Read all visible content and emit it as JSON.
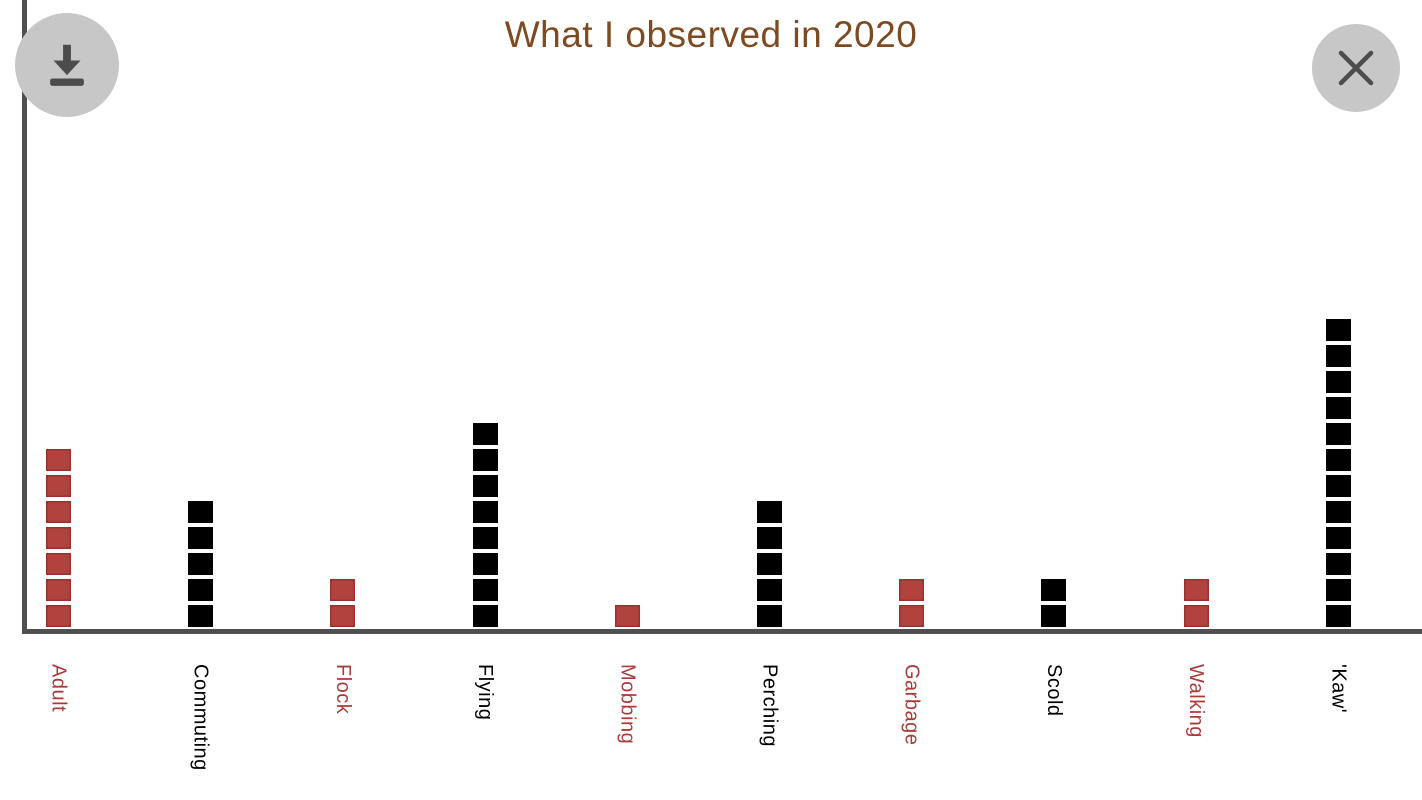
{
  "window": {
    "title": "What I observed in 2020"
  },
  "toolbar": {
    "download_icon": "download-icon",
    "close_icon": "close-icon"
  },
  "chart_data": {
    "type": "bar",
    "subtype": "stacked-unit-squares",
    "title": "What I observed in 2020",
    "categories": [
      "Adult",
      "Commuting",
      "Flock",
      "Flying",
      "Mobbing",
      "Perching",
      "Garbage",
      "Scold",
      "Walking",
      "'Kaw'"
    ],
    "values": [
      7,
      5,
      2,
      8,
      1,
      5,
      2,
      2,
      2,
      12
    ],
    "bar_colors": [
      "#b2423e",
      "#000000",
      "#b2423e",
      "#000000",
      "#b2423e",
      "#000000",
      "#b2423e",
      "#000000",
      "#b2423e",
      "#000000"
    ],
    "label_colors": [
      "#a93c3a",
      "#000000",
      "#a93c3a",
      "#000000",
      "#a93c3a",
      "#000000",
      "#a93c3a",
      "#000000",
      "#a93c3a",
      "#000000"
    ],
    "unit_value": 1,
    "ylim": [
      0,
      12
    ],
    "grid": false,
    "legend": "none",
    "xlabel": "",
    "ylabel": ""
  },
  "colors": {
    "title": "#7d4a21",
    "axis": "#4f4f4f",
    "background": "#ffffff",
    "button_bg": "#c7c7c7",
    "button_icon": "#4c4c4c",
    "square_red": "#b2423e",
    "square_red_border": "#96332f",
    "square_black": "#000000"
  }
}
